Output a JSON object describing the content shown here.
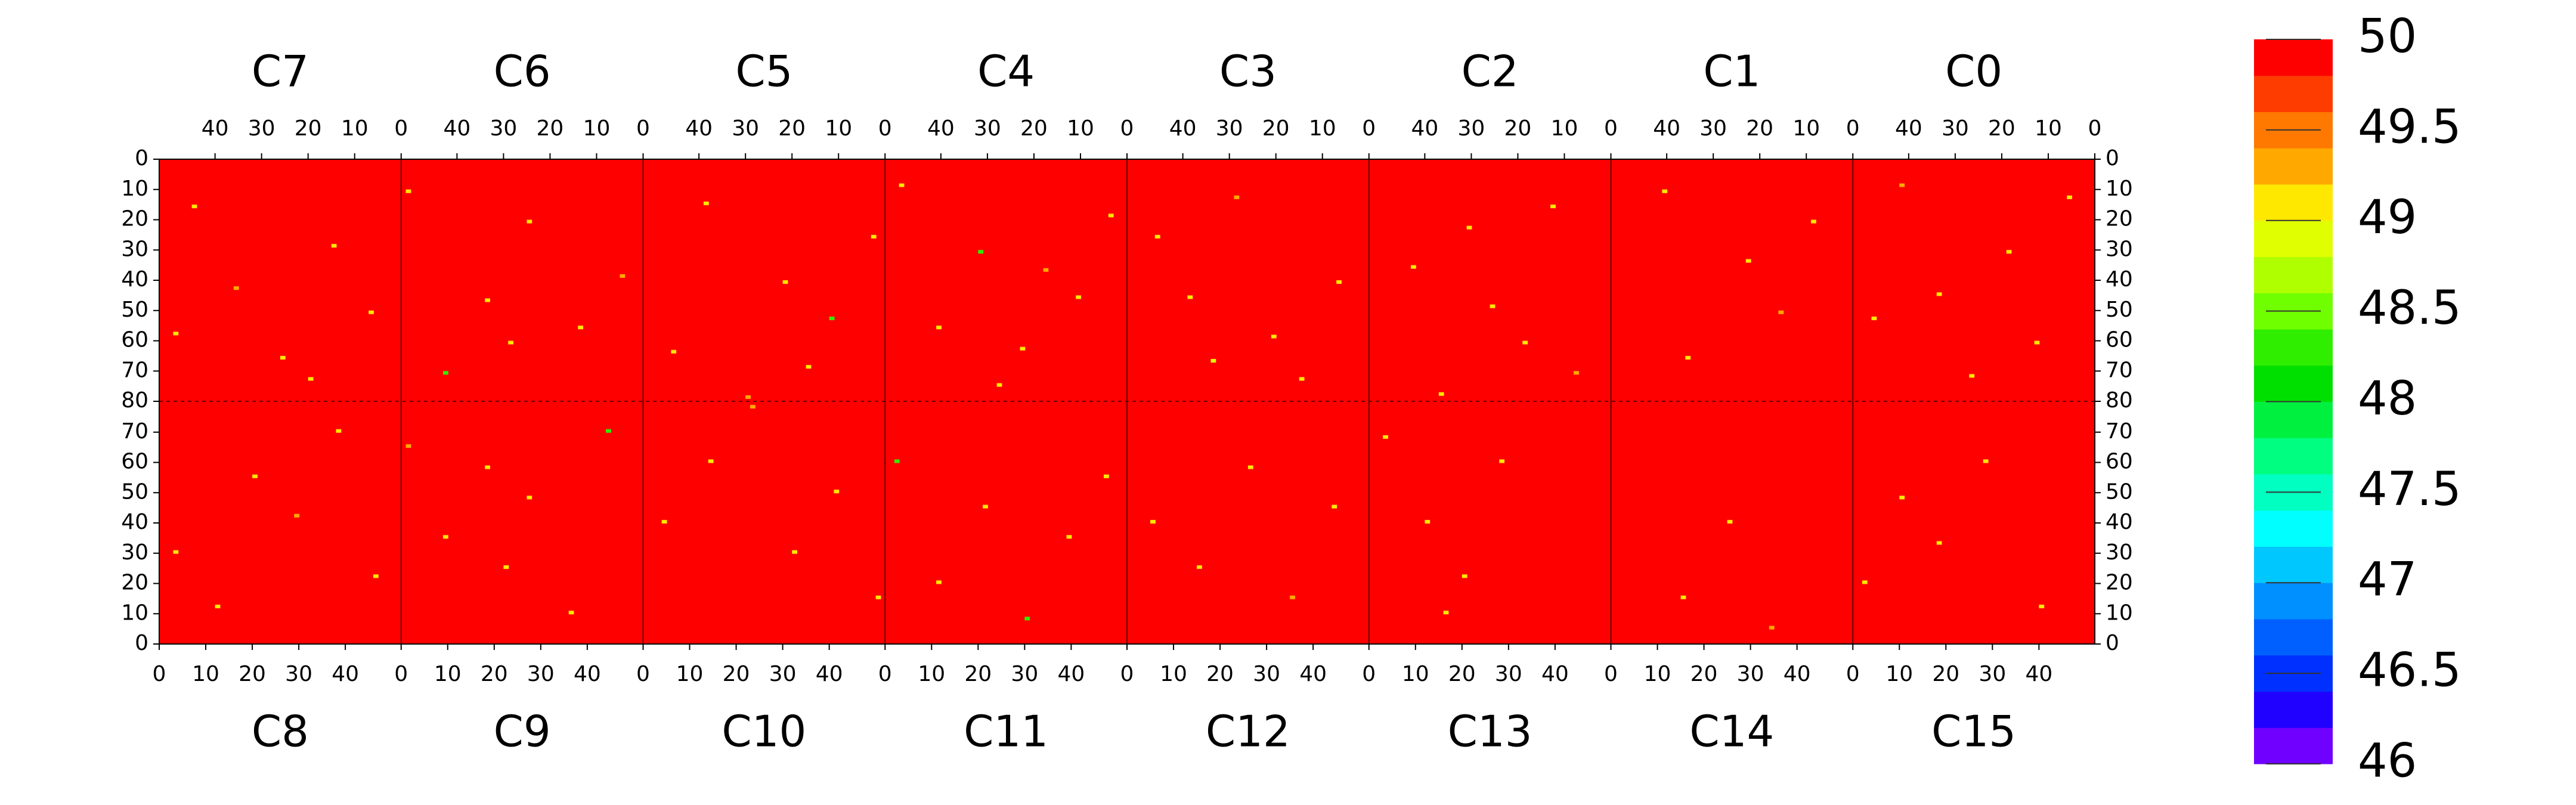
{
  "chart_data": {
    "type": "heatmap",
    "chips": [
      "C0",
      "C1",
      "C2",
      "C3",
      "C4",
      "C5",
      "C6",
      "C7",
      "C8",
      "C9",
      "C10",
      "C11",
      "C12",
      "C13",
      "C14",
      "C15"
    ],
    "xlim": [
      0,
      52
    ],
    "xticks": [
      0,
      10,
      20,
      30,
      40
    ],
    "ylim": [
      0,
      80
    ],
    "yticks": [
      0,
      10,
      20,
      30,
      40,
      50,
      60,
      70,
      80
    ],
    "background": 50,
    "zlim": [
      46,
      50
    ],
    "zticks": [
      46,
      46.5,
      47,
      47.5,
      48,
      48.5,
      49,
      49.5,
      50
    ],
    "colors": [
      "#7000ff",
      "#2000ff",
      "#0030ff",
      "#0060ff",
      "#0090ff",
      "#00c8ff",
      "#00ffff",
      "#00ffc0",
      "#00ff80",
      "#00f040",
      "#00e000",
      "#30ee00",
      "#70ff00",
      "#b0ff00",
      "#e0ff00",
      "#ffe800",
      "#ffa800",
      "#ff7800",
      "#ff3c00",
      "#ff0000"
    ],
    "pixels": [
      [
        0,
        5,
        12,
        49.1
      ],
      [
        0,
        18,
        30,
        49.1
      ],
      [
        0,
        33,
        44,
        49
      ],
      [
        0,
        41,
        8,
        49.2
      ],
      [
        0,
        12,
        60,
        49.1
      ],
      [
        0,
        26,
        71,
        49
      ],
      [
        0,
        47,
        52,
        49.1
      ],
      [
        1,
        8,
        20,
        49.1
      ],
      [
        1,
        22,
        33,
        49
      ],
      [
        1,
        35,
        65,
        49.1
      ],
      [
        1,
        15,
        50,
        49.2
      ],
      [
        1,
        40,
        10,
        49.1
      ],
      [
        2,
        25,
        48,
        49.1
      ],
      [
        2,
        30,
        22,
        49
      ],
      [
        2,
        18,
        60,
        49.1
      ],
      [
        2,
        42,
        35,
        49
      ],
      [
        2,
        7,
        70,
        49.2
      ],
      [
        2,
        36,
        77,
        49.1
      ],
      [
        2,
        12,
        15,
        49
      ],
      [
        3,
        6,
        40,
        49.1
      ],
      [
        3,
        20,
        58,
        49
      ],
      [
        3,
        28,
        12,
        49.2
      ],
      [
        3,
        38,
        45,
        49.1
      ],
      [
        3,
        45,
        25,
        49
      ],
      [
        3,
        14,
        72,
        49.1
      ],
      [
        3,
        33,
        66,
        48.9
      ],
      [
        4,
        3,
        18,
        49.1
      ],
      [
        4,
        10,
        45,
        49
      ],
      [
        4,
        22,
        62,
        49.1
      ],
      [
        4,
        31,
        30,
        48.3
      ],
      [
        4,
        40,
        55,
        49.1
      ],
      [
        4,
        48,
        8,
        49
      ],
      [
        4,
        17,
        36,
        49.2
      ],
      [
        4,
        27,
        74,
        49.1
      ],
      [
        5,
        2,
        25,
        49.1
      ],
      [
        5,
        11,
        52,
        48.3
      ],
      [
        5,
        21,
        40,
        49.1
      ],
      [
        5,
        29,
        78,
        49.2
      ],
      [
        5,
        38,
        14,
        49
      ],
      [
        5,
        45,
        63,
        49.1
      ],
      [
        5,
        16,
        68,
        49
      ],
      [
        6,
        4,
        38,
        49.2
      ],
      [
        6,
        13,
        55,
        49.1
      ],
      [
        6,
        24,
        20,
        49
      ],
      [
        6,
        33,
        46,
        49.1
      ],
      [
        6,
        42,
        70,
        48.3
      ],
      [
        6,
        50,
        10,
        49.1
      ],
      [
        6,
        28,
        60,
        49
      ],
      [
        7,
        6,
        50,
        49.1
      ],
      [
        7,
        14,
        28,
        49
      ],
      [
        7,
        25,
        65,
        49.1
      ],
      [
        7,
        35,
        42,
        49.2
      ],
      [
        7,
        44,
        15,
        49.1
      ],
      [
        7,
        19,
        72,
        49
      ],
      [
        7,
        48,
        57,
        49.1
      ],
      [
        8,
        3,
        30,
        49.1
      ],
      [
        8,
        12,
        12,
        49
      ],
      [
        8,
        20,
        55,
        49.1
      ],
      [
        8,
        29,
        42,
        49.2
      ],
      [
        8,
        38,
        70,
        49.1
      ],
      [
        8,
        46,
        22,
        49
      ],
      [
        9,
        1,
        65,
        49.2
      ],
      [
        9,
        9,
        35,
        49.1
      ],
      [
        9,
        18,
        58,
        49
      ],
      [
        9,
        27,
        48,
        49.1
      ],
      [
        9,
        36,
        10,
        49.1
      ],
      [
        9,
        44,
        70,
        48.3
      ],
      [
        9,
        22,
        25,
        49
      ],
      [
        10,
        4,
        40,
        49.1
      ],
      [
        10,
        14,
        60,
        49
      ],
      [
        10,
        23,
        78,
        49.2
      ],
      [
        10,
        32,
        30,
        49.1
      ],
      [
        10,
        41,
        50,
        49
      ],
      [
        10,
        50,
        15,
        49.1
      ],
      [
        11,
        2,
        60,
        48.3
      ],
      [
        11,
        11,
        20,
        49.1
      ],
      [
        11,
        21,
        45,
        49
      ],
      [
        11,
        30,
        8,
        48.3
      ],
      [
        11,
        39,
        35,
        49.1
      ],
      [
        11,
        47,
        55,
        49
      ],
      [
        12,
        5,
        40,
        49.1
      ],
      [
        12,
        15,
        25,
        49
      ],
      [
        12,
        26,
        58,
        49.1
      ],
      [
        12,
        35,
        15,
        49.2
      ],
      [
        12,
        44,
        45,
        49
      ],
      [
        13,
        3,
        68,
        49.1
      ],
      [
        13,
        12,
        40,
        49
      ],
      [
        13,
        20,
        22,
        49.1
      ],
      [
        13,
        28,
        60,
        49.1
      ],
      [
        13,
        16,
        10,
        49
      ],
      [
        14,
        15,
        15,
        49.1
      ],
      [
        14,
        34,
        5,
        49.2
      ],
      [
        14,
        25,
        40,
        49
      ],
      [
        15,
        2,
        20,
        49.1
      ],
      [
        15,
        10,
        48,
        49
      ],
      [
        15,
        18,
        33,
        49.1
      ],
      [
        15,
        40,
        12,
        49
      ],
      [
        15,
        28,
        60,
        49.1
      ]
    ]
  }
}
